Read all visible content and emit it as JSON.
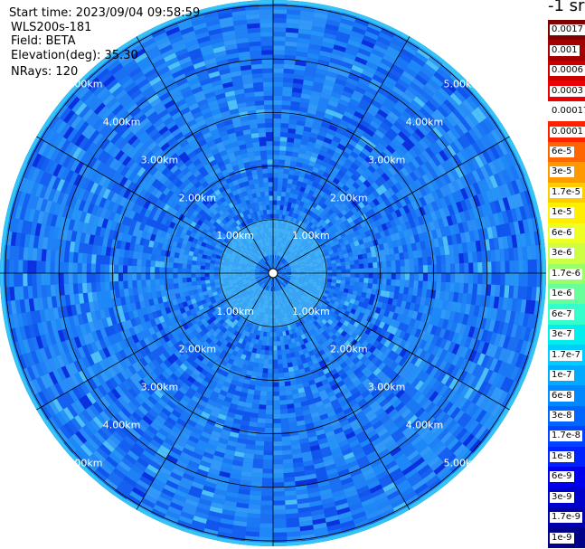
{
  "header": {
    "start_time": "Start time: 2023/09/04 09:58:59",
    "instrument": "WLS200s-181",
    "field": "Field: BETA",
    "elevation": "Elevation(deg): 35.30",
    "nrays": "NRays: 120"
  },
  "colorbar": {
    "unit": "-1 sr",
    "labels": [
      "0.0017",
      "0.001",
      "0.0006",
      "0.0003",
      "0.00017",
      "0.0001",
      "6e-5",
      "3e-5",
      "1.7e-5",
      "1e-5",
      "6e-6",
      "3e-6",
      "1.7e-6",
      "1e-6",
      "6e-7",
      "3e-7",
      "1.7e-7",
      "1e-7",
      "6e-8",
      "3e-8",
      "1.7e-8",
      "1e-8",
      "6e-9",
      "3e-9",
      "1.7e-9",
      "1e-9"
    ],
    "colors": [
      "#7f0000",
      "#a50000",
      "#cc0000",
      "#ee0000",
      "#ffffff",
      "#ff2200",
      "#ff6600",
      "#ff9900",
      "#ffcc00",
      "#ffee00",
      "#eeff22",
      "#ccff44",
      "#99ff66",
      "#66ff99",
      "#33ffcc",
      "#00eeee",
      "#00ccff",
      "#00aaff",
      "#0088ff",
      "#0066ff",
      "#0044ff",
      "#0022ff",
      "#0000ee",
      "#0000cc",
      "#0000aa",
      "#000088"
    ]
  },
  "chart_data": {
    "type": "heatmap",
    "projection": "polar PPI",
    "range_rings_km": [
      1,
      2,
      3,
      4,
      5
    ],
    "ring_labels": [
      "1.00km",
      "2.00km",
      "3.00km",
      "4.00km",
      "5.00km"
    ],
    "max_range_km": 5.1,
    "azimuth_spokes_deg": [
      0,
      30,
      60,
      90,
      120,
      150,
      180,
      210,
      240,
      270,
      300,
      330
    ],
    "n_rays": 120,
    "dominant_value_range": [
      "1e-8",
      "1e-7"
    ]
  }
}
